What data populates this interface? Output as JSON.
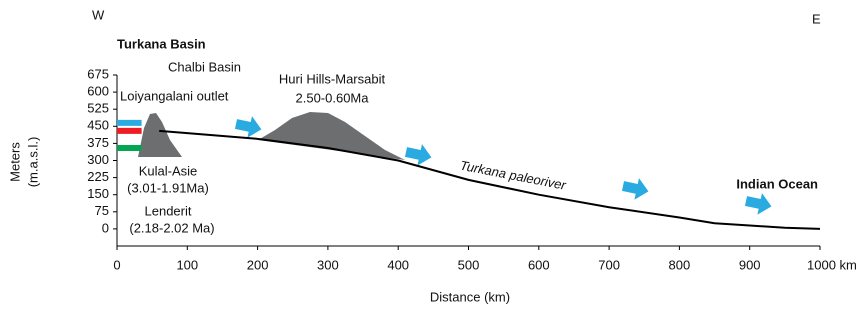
{
  "chart_data": {
    "type": "line",
    "x_label": "Distance (km)",
    "y_label": [
      "Meters",
      "(m.a.s.l.)"
    ],
    "x": [
      60,
      100,
      200,
      300,
      400,
      500,
      600,
      700,
      800,
      850,
      900,
      950,
      1000
    ],
    "series": [
      {
        "color": "#000000",
        "values": [
          430,
          420,
          395,
          355,
          300,
          215,
          150,
          95,
          50,
          25,
          15,
          5,
          0
        ]
      }
    ],
    "lake_levels": {
      "values": [
        465,
        430,
        355
      ],
      "colors": [
        "#29abe2",
        "#ed1c24",
        "#00a651"
      ]
    },
    "xlim": [
      0,
      1000
    ],
    "xticks": [
      0,
      100,
      200,
      300,
      400,
      500,
      600,
      700,
      800,
      900,
      {
        "value": 1000,
        "label": "1000 km"
      }
    ],
    "ylim": [
      -75,
      675
    ],
    "yticks": [
      0,
      75,
      150,
      225,
      300,
      375,
      450,
      525,
      600,
      675
    ],
    "annotations": [
      "W",
      "E",
      "Turkana Basin",
      "Chalbi Basin",
      "Huri Hills-Marsabit",
      "2.50-0.60Ma",
      "Loiyangalani outlet",
      "Kulal-Asie",
      "(3.01-1.91Ma)",
      "Lenderit",
      "(2.18-2.02 Ma)",
      "Turkana paleoriver",
      "Indian Ocean"
    ]
  }
}
